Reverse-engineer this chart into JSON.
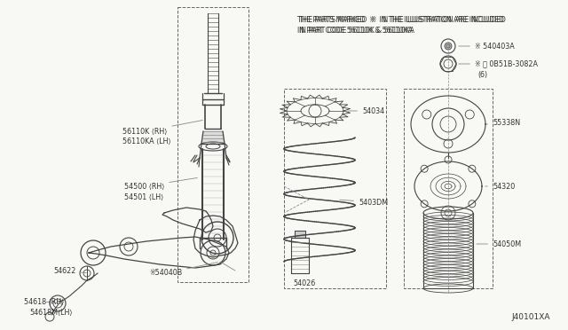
{
  "background_color": "#f5f5f0",
  "line_color": "#444444",
  "text_color": "#333333",
  "notice_line1": "THE PARTS MARKED  ※  IN THE ILLUSTRATION ARE INCLUDED",
  "notice_line2": "IN PART CODE 56110K & 56110KA",
  "diagram_id": "J40101XA",
  "figsize": [
    6.4,
    3.72
  ],
  "dpi": 100
}
